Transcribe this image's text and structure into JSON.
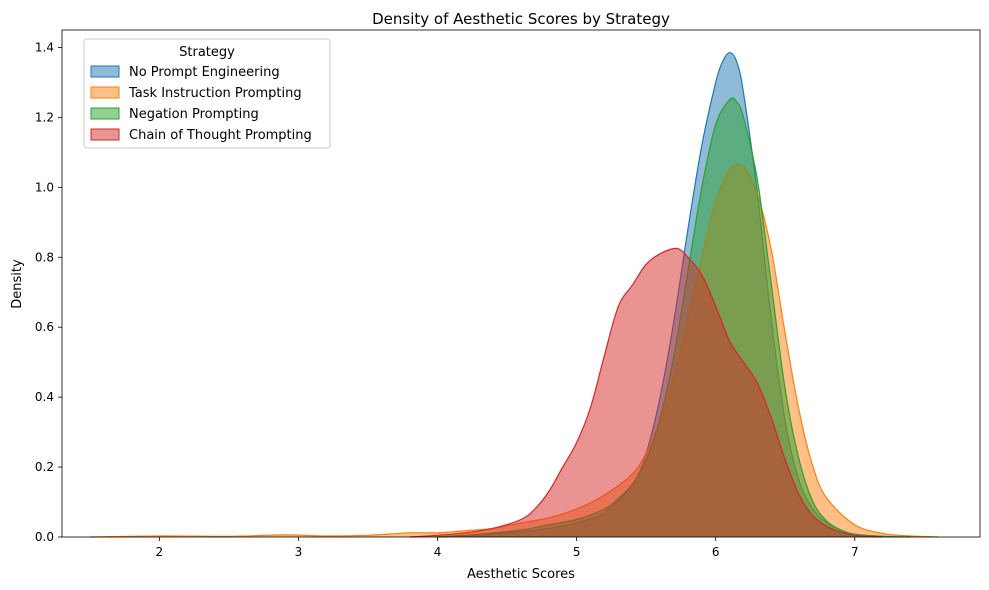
{
  "chart_data": {
    "type": "area",
    "title": "Density of Aesthetic Scores by Strategy",
    "xlabel": "Aesthetic Scores",
    "ylabel": "Density",
    "xlim": [
      1.3,
      7.9
    ],
    "ylim": [
      0,
      1.45
    ],
    "xticks": [
      2,
      3,
      4,
      5,
      6,
      7
    ],
    "yticks": [
      0.0,
      0.2,
      0.4,
      0.6,
      0.8,
      1.0,
      1.2,
      1.4
    ],
    "grid": false,
    "legend": {
      "title": "Strategy",
      "placement": "top-left"
    },
    "series": [
      {
        "name": "No Prompt Engineering",
        "color": "#1f77b4",
        "x": [
          4.0,
          4.3,
          4.6,
          4.8,
          5.0,
          5.2,
          5.4,
          5.5,
          5.6,
          5.7,
          5.8,
          5.9,
          6.0,
          6.05,
          6.1,
          6.15,
          6.2,
          6.3,
          6.4,
          6.5,
          6.6,
          6.7,
          6.8,
          6.9,
          7.0,
          7.2,
          7.4
        ],
        "y": [
          0.0,
          0.005,
          0.015,
          0.025,
          0.04,
          0.07,
          0.15,
          0.24,
          0.4,
          0.62,
          0.88,
          1.12,
          1.3,
          1.36,
          1.385,
          1.36,
          1.27,
          0.98,
          0.62,
          0.33,
          0.16,
          0.08,
          0.04,
          0.02,
          0.008,
          0.002,
          0.0
        ]
      },
      {
        "name": "Task Instruction Prompting",
        "color": "#ff7f0e",
        "x": [
          1.5,
          2.0,
          2.5,
          2.9,
          3.2,
          3.5,
          3.8,
          4.0,
          4.2,
          4.4,
          4.6,
          4.8,
          5.0,
          5.2,
          5.4,
          5.5,
          5.6,
          5.7,
          5.8,
          5.9,
          6.0,
          6.1,
          6.2,
          6.3,
          6.4,
          6.5,
          6.6,
          6.7,
          6.8,
          7.0,
          7.2,
          7.4,
          7.6
        ],
        "y": [
          0.0,
          0.003,
          0.002,
          0.006,
          0.003,
          0.005,
          0.012,
          0.012,
          0.018,
          0.025,
          0.04,
          0.055,
          0.08,
          0.12,
          0.18,
          0.24,
          0.33,
          0.46,
          0.62,
          0.8,
          0.96,
          1.05,
          1.06,
          0.98,
          0.82,
          0.58,
          0.36,
          0.2,
          0.11,
          0.035,
          0.01,
          0.003,
          0.0
        ]
      },
      {
        "name": "Negation Prompting",
        "color": "#2ca02c",
        "x": [
          4.0,
          4.3,
          4.6,
          4.8,
          5.0,
          5.2,
          5.3,
          5.4,
          5.5,
          5.6,
          5.7,
          5.8,
          5.9,
          6.0,
          6.1,
          6.15,
          6.2,
          6.3,
          6.4,
          6.5,
          6.6,
          6.7,
          6.8,
          6.9,
          7.0,
          7.2,
          7.4
        ],
        "y": [
          0.0,
          0.008,
          0.02,
          0.035,
          0.05,
          0.08,
          0.11,
          0.15,
          0.22,
          0.34,
          0.52,
          0.76,
          1.0,
          1.18,
          1.25,
          1.245,
          1.2,
          1.02,
          0.72,
          0.42,
          0.22,
          0.1,
          0.045,
          0.02,
          0.008,
          0.002,
          0.0
        ]
      },
      {
        "name": "Chain of Thought Prompting",
        "color": "#d62728",
        "x": [
          3.8,
          4.0,
          4.2,
          4.4,
          4.6,
          4.7,
          4.8,
          4.9,
          5.0,
          5.1,
          5.2,
          5.3,
          5.4,
          5.5,
          5.6,
          5.7,
          5.75,
          5.8,
          5.9,
          6.0,
          6.1,
          6.2,
          6.3,
          6.4,
          6.5,
          6.6,
          6.7,
          6.8,
          6.9,
          7.0,
          7.2
        ],
        "y": [
          0.0,
          0.005,
          0.012,
          0.025,
          0.05,
          0.08,
          0.13,
          0.2,
          0.27,
          0.37,
          0.52,
          0.66,
          0.72,
          0.78,
          0.81,
          0.825,
          0.82,
          0.8,
          0.75,
          0.66,
          0.56,
          0.5,
          0.44,
          0.34,
          0.22,
          0.12,
          0.06,
          0.03,
          0.014,
          0.005,
          0.0
        ]
      }
    ]
  }
}
